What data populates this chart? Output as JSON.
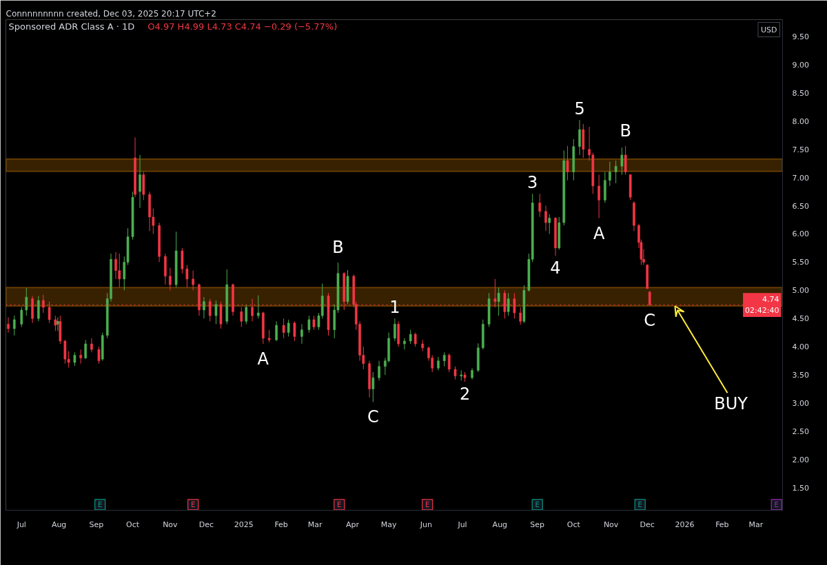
{
  "chart_data": {
    "type": "candlestick",
    "title": "Sponsored ADR Class A · 1D",
    "subtitle": "O4.97 H4.99 L4.73 C4.74 −0.29 (−5.77%)",
    "ylabel": "USD",
    "xlim": [
      "2024-06-18",
      "2026-03-23"
    ],
    "xticks": [
      {
        "value": "2024-07-01",
        "label": "Jul"
      },
      {
        "value": "2024-08-01",
        "label": "Aug"
      },
      {
        "value": "2024-09-01",
        "label": "Sep"
      },
      {
        "value": "2024-10-01",
        "label": "Oct"
      },
      {
        "value": "2024-11-01",
        "label": "Nov"
      },
      {
        "value": "2024-12-01",
        "label": "Dec"
      },
      {
        "value": "2025-01-01",
        "label": "2025"
      },
      {
        "value": "2025-02-01",
        "label": "Feb"
      },
      {
        "value": "2025-03-01",
        "label": "Mar"
      },
      {
        "value": "2025-04-01",
        "label": "Apr"
      },
      {
        "value": "2025-05-01",
        "label": "May"
      },
      {
        "value": "2025-06-01",
        "label": "Jun"
      },
      {
        "value": "2025-07-01",
        "label": "Jul"
      },
      {
        "value": "2025-08-01",
        "label": "Aug"
      },
      {
        "value": "2025-09-01",
        "label": "Sep"
      },
      {
        "value": "2025-10-01",
        "label": "Oct"
      },
      {
        "value": "2025-11-01",
        "label": "Nov"
      },
      {
        "value": "2025-12-01",
        "label": "Dec"
      },
      {
        "value": "2026-01-01",
        "label": "2026"
      },
      {
        "value": "2026-02-01",
        "label": "Feb"
      },
      {
        "value": "2026-03-01",
        "label": "Mar"
      }
    ],
    "ylim": [
      1.1,
      9.8
    ],
    "yticks": [
      {
        "value": 1.5,
        "label": "1.50"
      },
      {
        "value": 2.0,
        "label": "2.00"
      },
      {
        "value": 2.5,
        "label": "2.50"
      },
      {
        "value": 3.0,
        "label": "3.00"
      },
      {
        "value": 3.5,
        "label": "3.50"
      },
      {
        "value": 4.0,
        "label": "4.00"
      },
      {
        "value": 4.5,
        "label": "4.50"
      },
      {
        "value": 5.0,
        "label": "5.00"
      },
      {
        "value": 5.5,
        "label": "5.50"
      },
      {
        "value": 6.0,
        "label": "6.00"
      },
      {
        "value": 6.5,
        "label": "6.50"
      },
      {
        "value": 7.0,
        "label": "7.00"
      },
      {
        "value": 7.5,
        "label": "7.50"
      },
      {
        "value": 8.0,
        "label": "8.00"
      },
      {
        "value": 8.5,
        "label": "8.50"
      },
      {
        "value": 9.0,
        "label": "9.00"
      },
      {
        "value": 9.5,
        "label": "9.50"
      }
    ],
    "bands": [
      {
        "axis": "y",
        "from": 7.11,
        "to": 7.33,
        "color": "#ff9800"
      },
      {
        "axis": "y",
        "from": 4.72,
        "to": 5.05,
        "color": "#ff9800"
      }
    ],
    "ref_lines": [
      {
        "axis": "y",
        "value": 4.74,
        "label": "4.74\n02:42:40",
        "color": "#f23645",
        "line_style": "dotted"
      }
    ],
    "annotations": [
      "Connnnnnnnn created, Dec 03, 2025 20:17 UTC+2",
      {
        "text": "A",
        "x": "2025-01-17",
        "y": 4.05
      },
      {
        "text": "B",
        "x": "2025-03-20",
        "y": 5.49
      },
      {
        "text": "C",
        "x": "2025-04-18",
        "y": 3.02
      },
      {
        "text": "1",
        "x": "2025-05-06",
        "y": 4.5
      },
      {
        "text": "2",
        "x": "2025-07-03",
        "y": 3.38
      },
      {
        "text": "3",
        "x": "2025-08-28",
        "y": 6.71
      },
      {
        "text": "4",
        "x": "2025-09-16",
        "y": 5.61
      },
      {
        "text": "5",
        "x": "2025-10-06",
        "y": 8.02
      },
      {
        "text": "A",
        "x": "2025-10-22",
        "y": 6.28
      },
      {
        "text": "B",
        "x": "2025-11-13",
        "y": 7.56
      },
      {
        "text": "C",
        "x": "2025-12-03",
        "y": 4.73
      },
      {
        "text": "BUY",
        "x": "2025-12-24",
        "y": 4.72
      }
    ],
    "series": [
      {
        "x": [
          "2024-06-20",
          "2024-06-25",
          "2024-07-01",
          "2024-07-05",
          "2024-07-10",
          "2024-07-15",
          "2024-07-19",
          "2024-07-24",
          "2024-07-29",
          "2024-07-31",
          "2024-08-02",
          "2024-08-06",
          "2024-08-09",
          "2024-08-14",
          "2024-08-19",
          "2024-08-23",
          "2024-08-28",
          "2024-09-03",
          "2024-09-06",
          "2024-09-10",
          "2024-09-13",
          "2024-09-17",
          "2024-09-20",
          "2024-09-24",
          "2024-09-27",
          "2024-10-01",
          "2024-10-03",
          "2024-10-07",
          "2024-10-10",
          "2024-10-15",
          "2024-10-18",
          "2024-10-23",
          "2024-10-28",
          "2024-11-01",
          "2024-11-06",
          "2024-11-11",
          "2024-11-15",
          "2024-11-20",
          "2024-11-25",
          "2024-11-29",
          "2024-12-04",
          "2024-12-09",
          "2024-12-13",
          "2024-12-18",
          "2024-12-23",
          "2024-12-30",
          "2025-01-03",
          "2025-01-08",
          "2025-01-13",
          "2025-01-17",
          "2025-01-22",
          "2025-01-28",
          "2025-02-03",
          "2025-02-07",
          "2025-02-12",
          "2025-02-18",
          "2025-02-24",
          "2025-02-28",
          "2025-03-04",
          "2025-03-07",
          "2025-03-12",
          "2025-03-17",
          "2025-03-20",
          "2025-03-25",
          "2025-03-28",
          "2025-04-02",
          "2025-04-04",
          "2025-04-07",
          "2025-04-10",
          "2025-04-15",
          "2025-04-18",
          "2025-04-23",
          "2025-04-28",
          "2025-05-01",
          "2025-05-06",
          "2025-05-09",
          "2025-05-14",
          "2025-05-19",
          "2025-05-23",
          "2025-05-29",
          "2025-06-03",
          "2025-06-06",
          "2025-06-11",
          "2025-06-16",
          "2025-06-20",
          "2025-06-25",
          "2025-06-30",
          "2025-07-03",
          "2025-07-09",
          "2025-07-14",
          "2025-07-18",
          "2025-07-23",
          "2025-07-28",
          "2025-07-31",
          "2025-08-05",
          "2025-08-08",
          "2025-08-13",
          "2025-08-18",
          "2025-08-21",
          "2025-08-25",
          "2025-08-28",
          "2025-09-03",
          "2025-09-08",
          "2025-09-11",
          "2025-09-16",
          "2025-09-19",
          "2025-09-23",
          "2025-09-26",
          "2025-10-01",
          "2025-10-06",
          "2025-10-09",
          "2025-10-14",
          "2025-10-17",
          "2025-10-22",
          "2025-10-27",
          "2025-10-31",
          "2025-11-05",
          "2025-11-10",
          "2025-11-13",
          "2025-11-17",
          "2025-11-20",
          "2025-11-24",
          "2025-11-26",
          "2025-11-28",
          "2025-12-01",
          "2025-12-03"
        ],
        "ohlc": [
          [
            4.4,
            4.52,
            4.25,
            4.32
          ],
          [
            4.32,
            4.55,
            4.2,
            4.48
          ],
          [
            4.4,
            4.7,
            4.35,
            4.65
          ],
          [
            4.65,
            5.04,
            4.55,
            4.88
          ],
          [
            4.85,
            4.9,
            4.42,
            4.5
          ],
          [
            4.5,
            4.9,
            4.45,
            4.82
          ],
          [
            4.82,
            4.92,
            4.6,
            4.7
          ],
          [
            4.7,
            4.8,
            4.42,
            4.48
          ],
          [
            4.48,
            4.55,
            4.28,
            4.38
          ],
          [
            4.4,
            4.52,
            4.28,
            4.45
          ],
          [
            4.45,
            4.55,
            4.05,
            4.1
          ],
          [
            4.1,
            4.12,
            3.7,
            3.78
          ],
          [
            3.78,
            3.92,
            3.63,
            3.72
          ],
          [
            3.72,
            3.9,
            3.66,
            3.85
          ],
          [
            3.85,
            3.95,
            3.7,
            3.8
          ],
          [
            3.8,
            4.12,
            3.78,
            4.05
          ],
          [
            4.05,
            4.15,
            3.9,
            3.95
          ],
          [
            3.95,
            4.0,
            3.7,
            3.75
          ],
          [
            3.78,
            4.25,
            3.75,
            4.2
          ],
          [
            4.2,
            4.95,
            4.15,
            4.85
          ],
          [
            4.85,
            5.65,
            4.8,
            5.55
          ],
          [
            5.55,
            5.68,
            5.2,
            5.35
          ],
          [
            5.35,
            5.65,
            5.05,
            5.2
          ],
          [
            5.2,
            5.6,
            5.0,
            5.5
          ],
          [
            5.5,
            6.1,
            5.45,
            5.95
          ],
          [
            5.95,
            6.75,
            5.9,
            6.65
          ],
          [
            7.35,
            7.71,
            6.65,
            6.7
          ],
          [
            6.75,
            7.4,
            6.46,
            7.05
          ],
          [
            7.05,
            7.1,
            6.6,
            6.7
          ],
          [
            6.7,
            6.75,
            6.05,
            6.3
          ],
          [
            6.3,
            6.45,
            6.0,
            6.15
          ],
          [
            6.15,
            6.2,
            5.5,
            5.6
          ],
          [
            5.6,
            5.65,
            5.1,
            5.25
          ],
          [
            5.25,
            5.4,
            5.0,
            5.1
          ],
          [
            5.1,
            6.04,
            5.05,
            5.7
          ],
          [
            5.7,
            5.75,
            5.3,
            5.38
          ],
          [
            5.38,
            5.45,
            5.05,
            5.2
          ],
          [
            5.2,
            5.35,
            5.0,
            5.1
          ],
          [
            5.1,
            5.12,
            4.55,
            4.65
          ],
          [
            4.65,
            4.88,
            4.5,
            4.8
          ],
          [
            4.8,
            4.85,
            4.45,
            4.55
          ],
          [
            4.55,
            4.82,
            4.4,
            4.75
          ],
          [
            4.75,
            4.8,
            4.32,
            4.4
          ],
          [
            4.45,
            5.37,
            4.4,
            5.1
          ],
          [
            5.1,
            5.12,
            4.55,
            4.62
          ],
          [
            4.62,
            4.7,
            4.35,
            4.45
          ],
          [
            4.45,
            4.75,
            4.4,
            4.7
          ],
          [
            4.7,
            4.85,
            4.45,
            4.55
          ],
          [
            4.55,
            4.91,
            4.5,
            4.6
          ],
          [
            4.6,
            4.62,
            4.05,
            4.15
          ],
          [
            4.15,
            4.3,
            4.08,
            4.12
          ],
          [
            4.12,
            4.45,
            4.1,
            4.38
          ],
          [
            4.38,
            4.5,
            4.15,
            4.25
          ],
          [
            4.25,
            4.48,
            4.18,
            4.42
          ],
          [
            4.42,
            4.45,
            4.1,
            4.18
          ],
          [
            4.18,
            4.4,
            4.05,
            4.3
          ],
          [
            4.3,
            4.55,
            4.25,
            4.48
          ],
          [
            4.48,
            4.55,
            4.3,
            4.35
          ],
          [
            4.35,
            4.6,
            4.3,
            4.55
          ],
          [
            4.55,
            5.12,
            4.5,
            4.9
          ],
          [
            4.9,
            4.95,
            4.2,
            4.3
          ],
          [
            4.3,
            4.75,
            4.15,
            4.65
          ],
          [
            4.65,
            5.49,
            4.6,
            5.3
          ],
          [
            5.3,
            5.32,
            4.65,
            4.8
          ],
          [
            4.8,
            5.36,
            4.75,
            5.25
          ],
          [
            5.25,
            5.28,
            4.7,
            4.75
          ],
          [
            4.75,
            4.8,
            4.3,
            4.4
          ],
          [
            4.4,
            4.45,
            3.75,
            3.85
          ],
          [
            3.85,
            4.0,
            3.6,
            3.7
          ],
          [
            3.7,
            3.75,
            3.1,
            3.25
          ],
          [
            3.25,
            3.55,
            3.02,
            3.45
          ],
          [
            3.45,
            3.75,
            3.4,
            3.65
          ],
          [
            3.65,
            3.8,
            3.5,
            3.75
          ],
          [
            3.75,
            4.25,
            3.72,
            4.15
          ],
          [
            4.15,
            4.5,
            4.1,
            4.4
          ],
          [
            4.4,
            4.45,
            4.0,
            4.05
          ],
          [
            4.05,
            4.15,
            3.95,
            4.1
          ],
          [
            4.1,
            4.3,
            4.05,
            4.22
          ],
          [
            4.22,
            4.25,
            4.0,
            4.05
          ],
          [
            4.05,
            4.12,
            3.92,
            3.98
          ],
          [
            3.98,
            4.0,
            3.75,
            3.8
          ],
          [
            3.8,
            3.85,
            3.55,
            3.62
          ],
          [
            3.62,
            3.82,
            3.58,
            3.75
          ],
          [
            3.75,
            3.9,
            3.65,
            3.85
          ],
          [
            3.85,
            3.88,
            3.55,
            3.6
          ],
          [
            3.6,
            3.65,
            3.42,
            3.48
          ],
          [
            3.48,
            3.58,
            3.4,
            3.5
          ],
          [
            3.5,
            3.55,
            3.38,
            3.45
          ],
          [
            3.45,
            3.62,
            3.42,
            3.58
          ],
          [
            3.58,
            4.06,
            3.55,
            3.98
          ],
          [
            3.98,
            4.48,
            3.95,
            4.4
          ],
          [
            4.4,
            4.95,
            4.35,
            4.85
          ],
          [
            4.85,
            5.2,
            4.7,
            4.8
          ],
          [
            4.8,
            5.05,
            4.55,
            4.95
          ],
          [
            4.95,
            5.0,
            4.5,
            4.62
          ],
          [
            4.62,
            4.95,
            4.55,
            4.85
          ],
          [
            4.85,
            4.95,
            4.5,
            4.6
          ],
          [
            4.6,
            4.7,
            4.39,
            4.45
          ],
          [
            4.45,
            5.09,
            4.42,
            5.0
          ],
          [
            5.0,
            5.65,
            4.98,
            5.55
          ],
          [
            5.55,
            6.71,
            5.5,
            6.55
          ],
          [
            6.55,
            6.71,
            6.3,
            6.4
          ],
          [
            6.4,
            6.5,
            6.05,
            6.2
          ],
          [
            6.2,
            6.35,
            6.0,
            6.28
          ],
          [
            6.28,
            6.3,
            5.61,
            5.75
          ],
          [
            5.75,
            6.3,
            5.72,
            6.2
          ],
          [
            6.2,
            7.48,
            6.15,
            7.3
          ],
          [
            7.3,
            7.56,
            6.95,
            7.1
          ],
          [
            7.1,
            7.68,
            6.95,
            7.55
          ],
          [
            7.55,
            8.02,
            7.4,
            7.85
          ],
          [
            7.85,
            7.95,
            7.35,
            7.5
          ],
          [
            7.5,
            7.9,
            7.3,
            7.4
          ],
          [
            7.4,
            7.44,
            6.71,
            6.85
          ],
          [
            6.85,
            7.05,
            6.28,
            6.6
          ],
          [
            6.6,
            7.1,
            6.55,
            6.95
          ],
          [
            6.95,
            7.28,
            6.85,
            7.1
          ],
          [
            7.1,
            7.3,
            6.9,
            7.2
          ],
          [
            7.2,
            7.53,
            7.05,
            7.4
          ],
          [
            7.4,
            7.56,
            7.05,
            7.1
          ],
          [
            7.05,
            7.06,
            6.6,
            6.65
          ],
          [
            6.55,
            6.58,
            6.05,
            6.15
          ],
          [
            6.15,
            6.18,
            5.75,
            5.85
          ],
          [
            5.85,
            5.9,
            5.45,
            5.55
          ],
          [
            5.55,
            5.73,
            5.45,
            5.5
          ],
          [
            5.45,
            5.46,
            5.03,
            5.03
          ],
          [
            4.97,
            4.99,
            4.73,
            4.74
          ]
        ],
        "colors": [
          "#f23645",
          "#4caf50",
          "#4caf50",
          "#4caf50",
          "#f23645",
          "#4caf50",
          "#f23645",
          "#f23645",
          "#f23645",
          "#4caf50",
          "#f23645",
          "#f23645",
          "#f23645",
          "#4caf50",
          "#f23645",
          "#4caf50",
          "#f23645",
          "#f23645",
          "#4caf50",
          "#4caf50",
          "#4caf50",
          "#f23645",
          "#f23645",
          "#4caf50",
          "#4caf50",
          "#4caf50",
          "#f23645",
          "#4caf50",
          "#f23645",
          "#f23645",
          "#f23645",
          "#f23645",
          "#f23645",
          "#f23645",
          "#4caf50",
          "#f23645",
          "#f23645",
          "#f23645",
          "#f23645",
          "#4caf50",
          "#f23645",
          "#4caf50",
          "#f23645",
          "#4caf50",
          "#f23645",
          "#f23645",
          "#4caf50",
          "#f23645",
          "#4caf50",
          "#f23645",
          "#f23645",
          "#4caf50",
          "#f23645",
          "#4caf50",
          "#f23645",
          "#4caf50",
          "#4caf50",
          "#f23645",
          "#4caf50",
          "#4caf50",
          "#f23645",
          "#4caf50",
          "#4caf50",
          "#f23645",
          "#4caf50",
          "#f23645",
          "#f23645",
          "#f23645",
          "#f23645",
          "#f23645",
          "#4caf50",
          "#4caf50",
          "#4caf50",
          "#4caf50",
          "#4caf50",
          "#f23645",
          "#4caf50",
          "#4caf50",
          "#f23645",
          "#f23645",
          "#f23645",
          "#f23645",
          "#4caf50",
          "#4caf50",
          "#f23645",
          "#f23645",
          "#4caf50",
          "#f23645",
          "#4caf50",
          "#4caf50",
          "#4caf50",
          "#4caf50",
          "#f23645",
          "#4caf50",
          "#f23645",
          "#4caf50",
          "#f23645",
          "#f23645",
          "#4caf50",
          "#4caf50",
          "#4caf50",
          "#f23645",
          "#f23645",
          "#4caf50",
          "#f23645",
          "#4caf50",
          "#4caf50",
          "#f23645",
          "#4caf50",
          "#4caf50",
          "#f23645",
          "#f23645",
          "#f23645",
          "#f23645",
          "#4caf50",
          "#4caf50",
          "#4caf50",
          "#4caf50",
          "#f23645",
          "#f23645",
          "#f23645",
          "#f23645",
          "#f23645",
          "#f23645",
          "#f23645",
          "#f23645"
        ]
      },
      {
        "type": "scatter",
        "marker": "square",
        "x": [
          "2024-09-04",
          "2024-11-20",
          "2025-03-21",
          "2025-06-02",
          "2025-09-01",
          "2025-11-25",
          "2026-03-18"
        ],
        "values": [
          1.2,
          1.2,
          1.2,
          1.2,
          1.2,
          1.2,
          1.2
        ],
        "colors": [
          "#089981",
          "#f23645",
          "#f23645",
          "#f23645",
          "#089981",
          "#089981",
          "#9c27b0"
        ],
        "value_labels": [
          "E",
          "E",
          "E",
          "E",
          "E",
          "E",
          "E"
        ]
      }
    ]
  }
}
